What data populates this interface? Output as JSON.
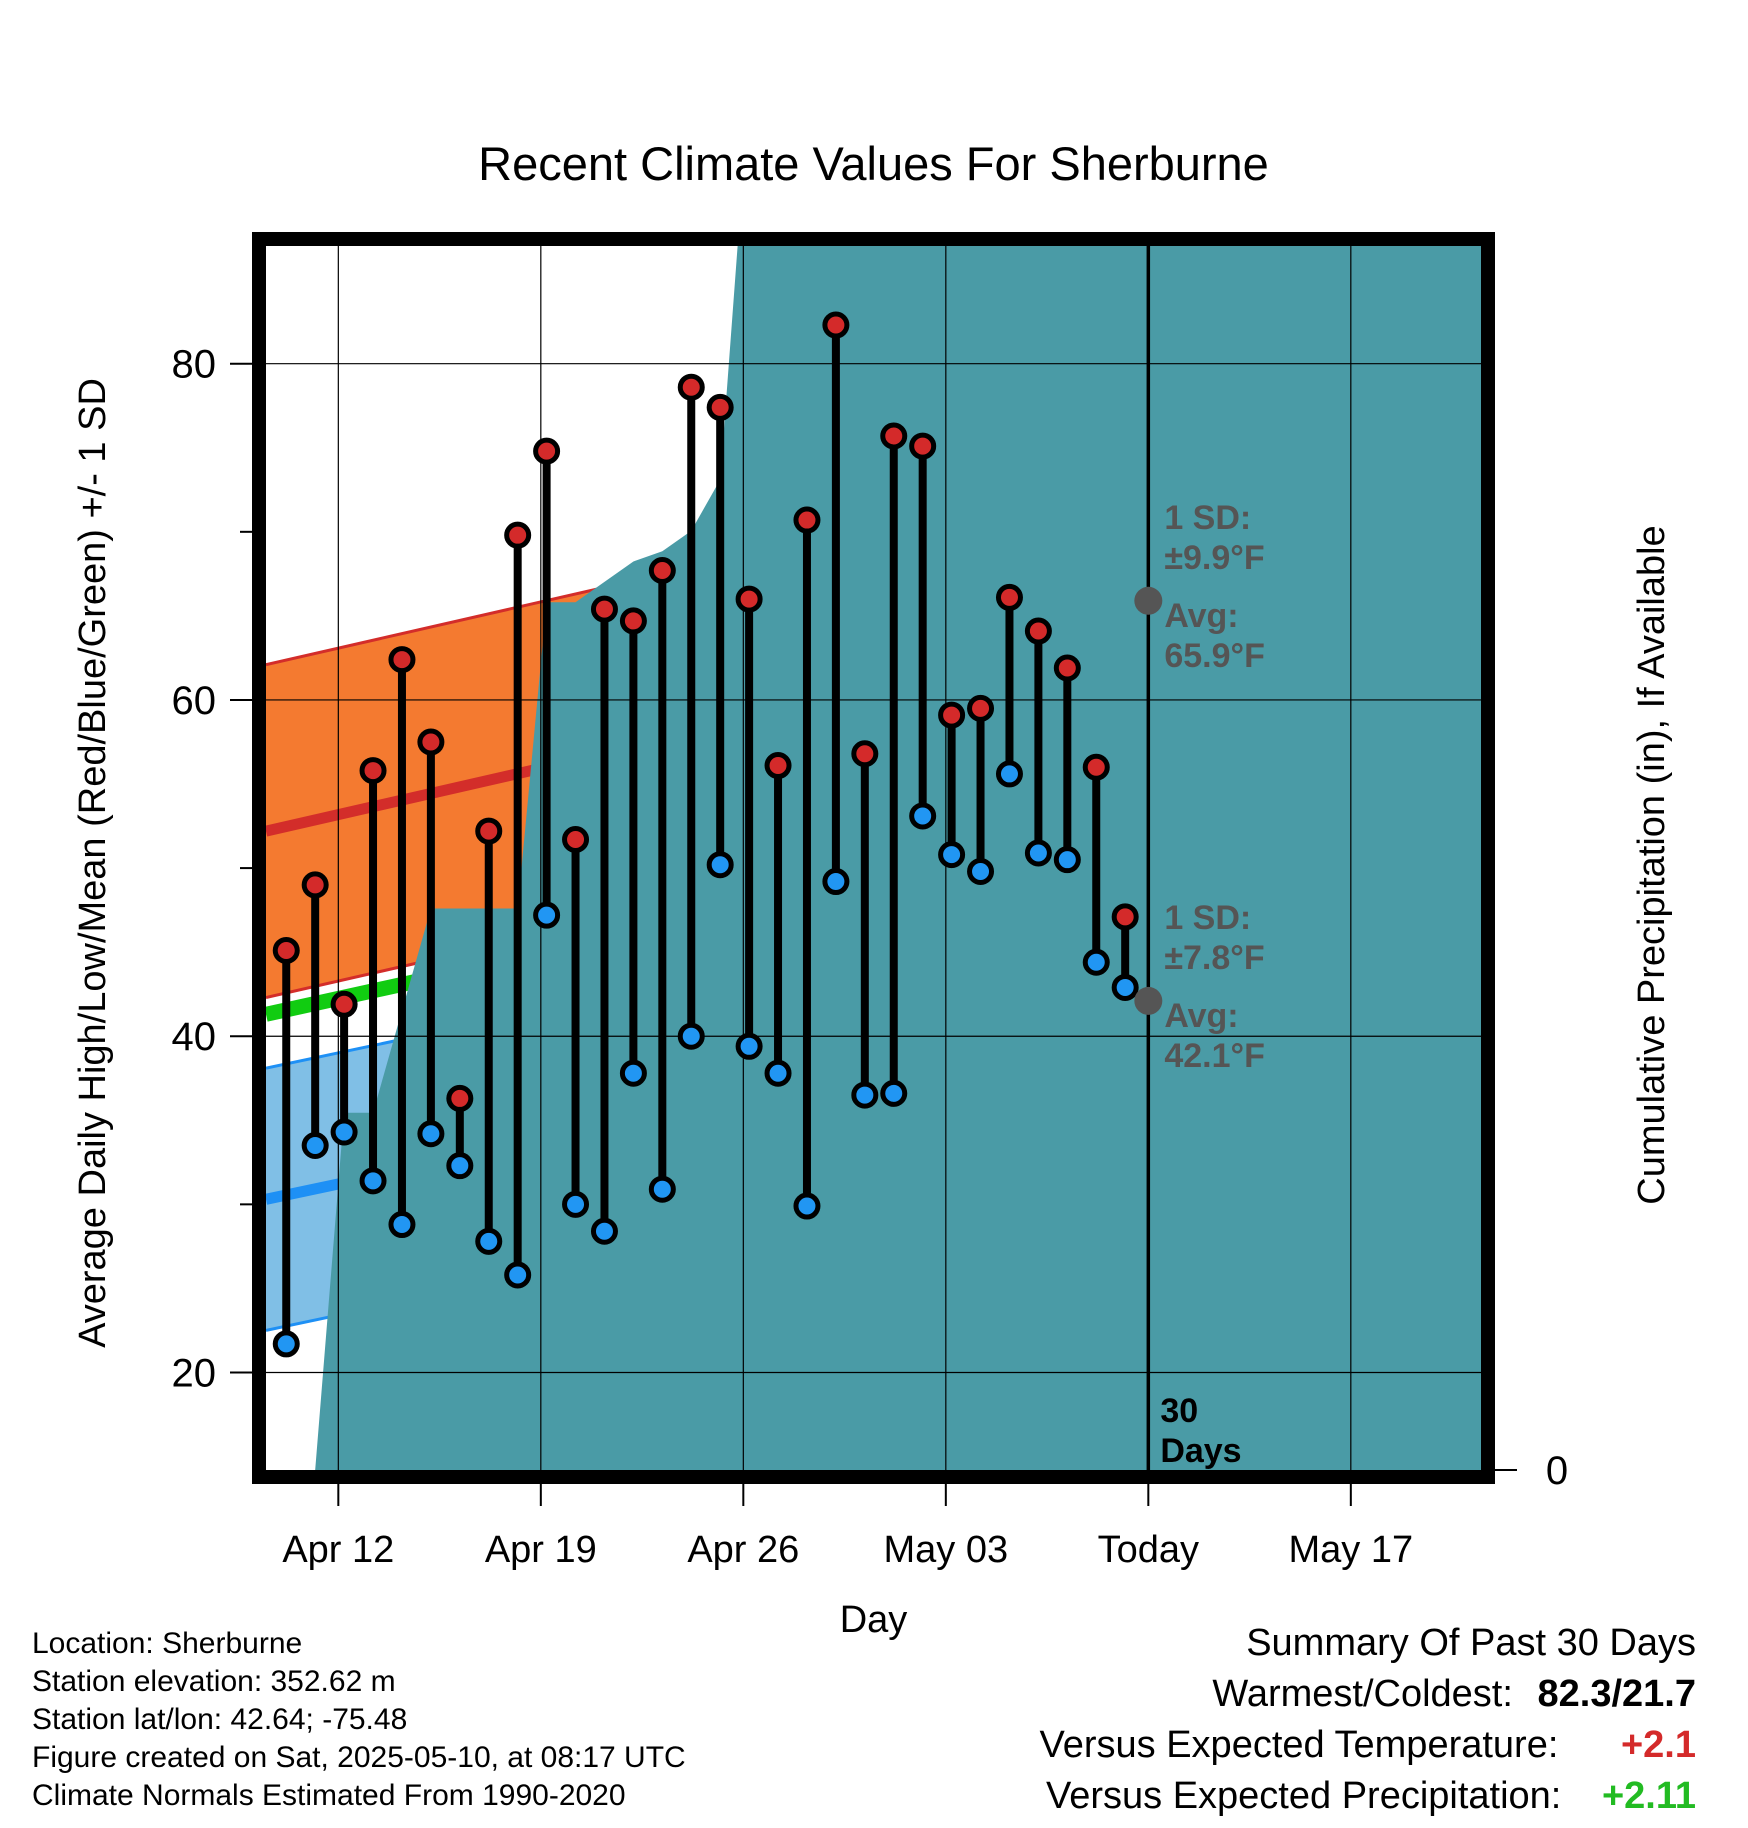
{
  "chart_data": {
    "type": "line",
    "title": "Recent Climate Values For Sherburne",
    "xlabel": "Day",
    "ylabel_left": "Average Daily High/Low/Mean (Red/Blue/Green) +/- 1 SD",
    "ylabel_right": "Cumulative Precipitation (in), If Available",
    "x_start": 0,
    "x_end": 42,
    "x_ticks": [
      {
        "x": 2.5,
        "label": "Apr 12"
      },
      {
        "x": 9.5,
        "label": "Apr 19"
      },
      {
        "x": 16.5,
        "label": "Apr 26"
      },
      {
        "x": 23.5,
        "label": "May 03"
      },
      {
        "x": 30.5,
        "label": "Today"
      },
      {
        "x": 37.5,
        "label": "May 17"
      }
    ],
    "y_left": {
      "min": 14.2,
      "max": 87,
      "ticks": [
        20,
        40,
        60,
        80
      ],
      "minor_ticks": [
        30,
        50,
        70
      ]
    },
    "y_right": {
      "min": 0,
      "ticks": [
        0,
        4,
        8,
        12
      ]
    },
    "today_x": 30.5,
    "today_label": "30\nDays",
    "normal_high": {
      "start": 52.2,
      "end": 68.7,
      "sd": 9.9
    },
    "normal_low": {
      "start": 30.3,
      "end": 45.6,
      "sd": 7.8
    },
    "normal_mean": {
      "start": 41.3,
      "end": 57.2
    },
    "annotations": {
      "high_sd": "1 SD:\n±9.9°F",
      "high_avg": "Avg:\n65.9°F",
      "high_avg_value": 65.9,
      "low_sd": "1 SD:\n±7.8°F",
      "low_avg": "Avg:\n42.1°F",
      "low_avg_value": 42.1
    },
    "observed": {
      "x": [
        0.7,
        1.7,
        2.7,
        3.7,
        4.7,
        5.7,
        6.7,
        7.7,
        8.7,
        9.7,
        10.7,
        11.7,
        12.7,
        13.7,
        14.7,
        15.7,
        16.7,
        17.7,
        18.7,
        19.7,
        20.7,
        21.7,
        22.7,
        23.7,
        24.7,
        25.7,
        26.7,
        27.7,
        28.7,
        29.7
      ],
      "high": [
        45.1,
        49.0,
        41.9,
        55.8,
        62.4,
        57.5,
        36.3,
        52.2,
        69.8,
        74.8,
        51.7,
        65.4,
        64.7,
        67.7,
        78.6,
        77.4,
        66.0,
        56.1,
        70.7,
        82.3,
        56.8,
        75.7,
        75.1,
        59.1,
        59.5,
        66.1,
        64.1,
        61.9,
        56.0,
        47.1
      ],
      "low": [
        21.7,
        33.5,
        34.3,
        31.4,
        28.8,
        34.2,
        32.3,
        27.8,
        25.8,
        47.2,
        30.0,
        28.4,
        37.8,
        30.9,
        40.0,
        50.2,
        39.4,
        37.8,
        29.9,
        49.2,
        36.5,
        36.6,
        53.1,
        50.8,
        49.8,
        55.6,
        50.9,
        50.5,
        44.4,
        42.9
      ]
    },
    "precip": {
      "x": [
        0,
        1.7,
        2.7,
        3.7,
        4.7,
        5.7,
        6.7,
        7.7,
        8.7,
        9.7,
        10.7,
        11.7,
        12.7,
        13.7,
        14.7,
        15.7,
        16.7,
        17.7,
        18.7,
        19.7,
        20.7,
        21.7,
        22.7,
        23.7,
        24.7,
        25.7,
        26.7,
        27.7,
        28.7,
        29.7,
        40.5
      ],
      "values": [
        0,
        0,
        0.35,
        0.35,
        0.45,
        0.55,
        0.55,
        0.55,
        0.55,
        0.85,
        0.85,
        0.87,
        0.89,
        0.9,
        0.92,
        0.97,
        1.35,
        1.4,
        1.4,
        2.0,
        2.0,
        2.05,
        2.2,
        2.6,
        3.15,
        3.6,
        5.0,
        5.05,
        5.05,
        5.65,
        5.65
      ]
    },
    "colors": {
      "high_band": "#f47a30",
      "high_line": "#d32d2a",
      "low_band": "#80bfe6",
      "low_line": "#1e90f5",
      "mean_line": "#11cc11",
      "precip": "#4a9ba6",
      "high_dot": "#d42a2a",
      "low_dot": "#2196f3",
      "annotation": "#555555"
    },
    "grid": true
  },
  "info": {
    "location": "Location: Sherburne",
    "elevation": "Station elevation: 352.62 m",
    "latlon": "Station lat/lon: 42.64; -75.48",
    "created": "Figure created on Sat, 2025-05-10, at 08:17 UTC",
    "normals": "Climate Normals Estimated From 1990-2020"
  },
  "summary": {
    "title": "Summary Of Past 30 Days",
    "warm_cold_label": "Warmest/Coldest:",
    "warmest": "82.3",
    "separator": "/",
    "coldest": "21.7",
    "temp_label": "Versus Expected Temperature:",
    "temp_value": "+2.1",
    "precip_label": "Versus Expected Precipitation:",
    "precip_value": "+2.11",
    "temp_color": "#d42a2a",
    "precip_color": "#22bb22"
  }
}
